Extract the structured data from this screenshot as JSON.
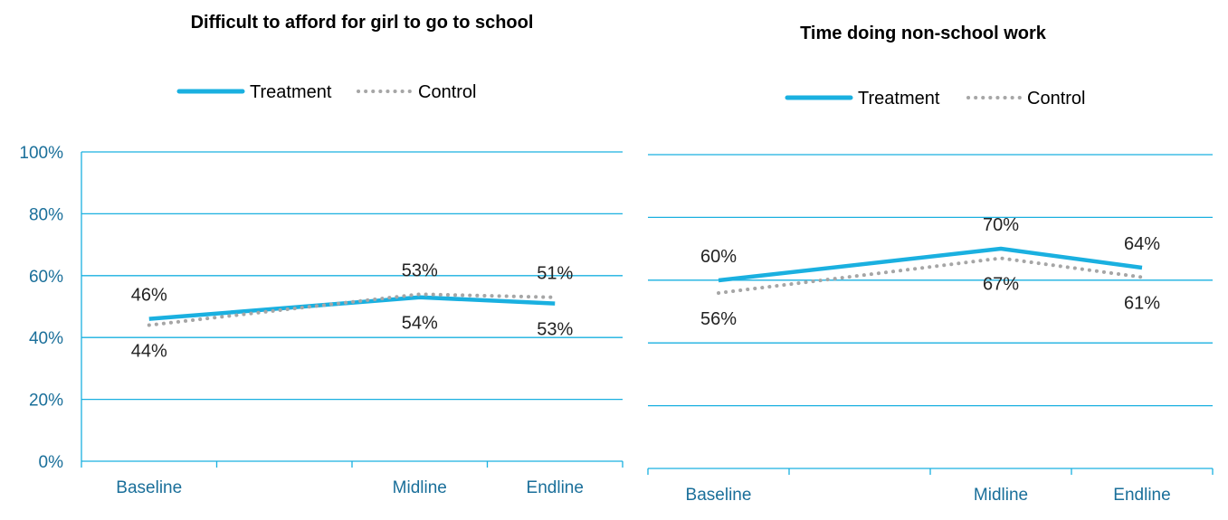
{
  "colors": {
    "treatment": "#1ab0e0",
    "control": "#a6a6a6",
    "grid": "#1ab0e0",
    "axis_text": "#1a6f9a",
    "label_text": "#222222"
  },
  "chart_data": [
    {
      "type": "line",
      "title": "Difficult to afford for girl to go to school",
      "categories": [
        "Baseline",
        "Midline",
        "Endline"
      ],
      "series": [
        {
          "name": "Treatment",
          "values": [
            46,
            53,
            51
          ],
          "labels": [
            "46%",
            "53%",
            "51%"
          ],
          "style": "solid"
        },
        {
          "name": "Control",
          "values": [
            44,
            54,
            53
          ],
          "labels": [
            "44%",
            "54%",
            "53%"
          ],
          "style": "dotted"
        }
      ],
      "ylim": [
        0,
        100
      ],
      "yticks": [
        "0%",
        "20%",
        "40%",
        "60%",
        "80%",
        "100%"
      ],
      "grid": true,
      "legend": "top-center"
    },
    {
      "type": "line",
      "title": "Time doing non-school work",
      "categories": [
        "Baseline",
        "Midline",
        "Endline"
      ],
      "series": [
        {
          "name": "Treatment",
          "values": [
            60,
            70,
            64
          ],
          "labels": [
            "60%",
            "70%",
            "64%"
          ],
          "style": "solid"
        },
        {
          "name": "Control",
          "values": [
            56,
            67,
            61
          ],
          "labels": [
            "56%",
            "67%",
            "61%"
          ],
          "style": "dotted"
        }
      ],
      "ylim": [
        0,
        100
      ],
      "yticks": [],
      "grid": true,
      "legend": "top-center"
    }
  ]
}
